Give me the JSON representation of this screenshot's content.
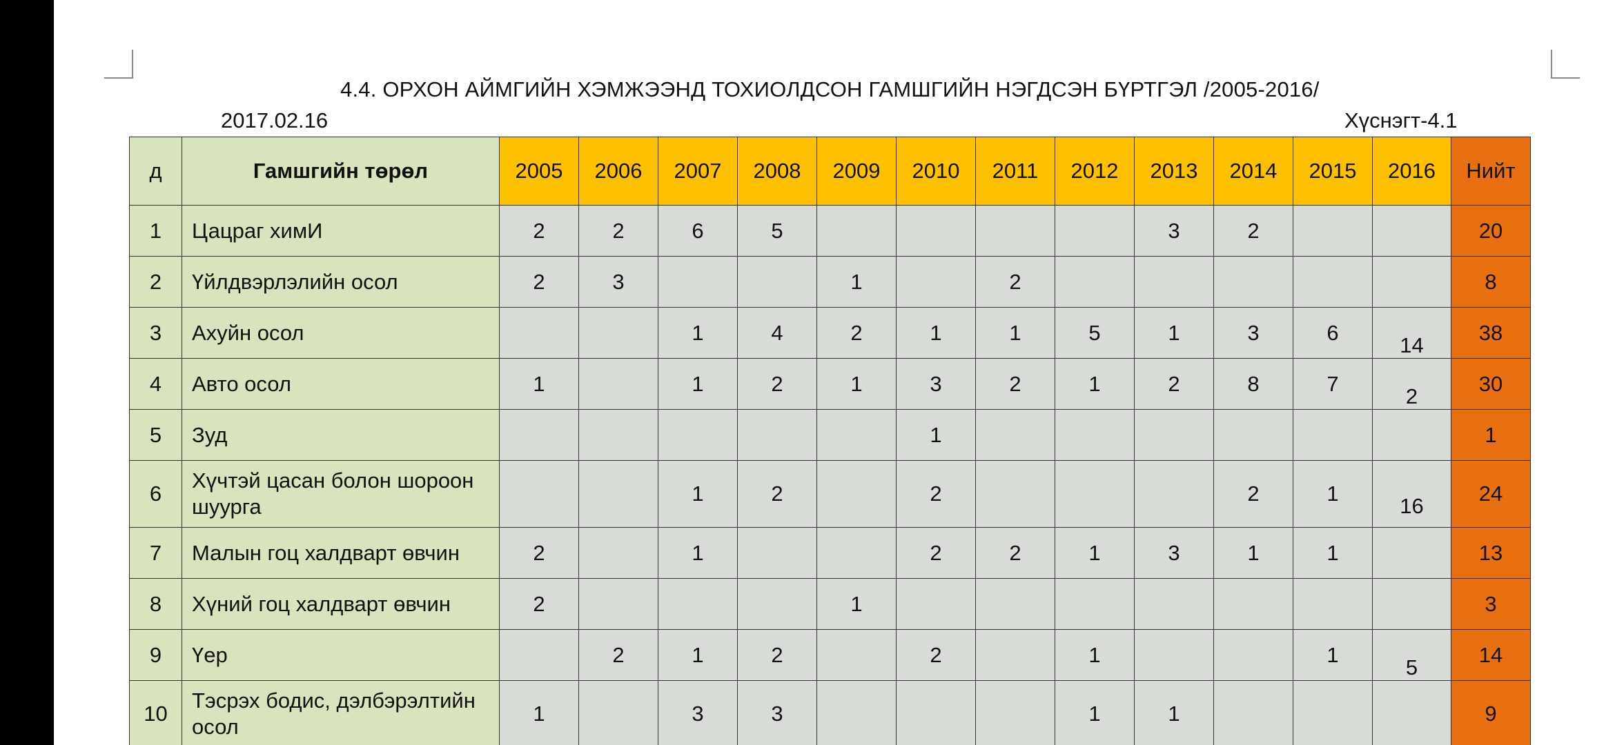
{
  "title": "4.4. ОРХОН АЙМГИЙН ХЭМЖЭЭНД ТОХИОЛДСОН ГАМШГИЙН НЭГДСЭН БҮРТГЭЛ /2005-2016/",
  "date": "2017.02.16",
  "appendix": "Хүснэгт-4.1",
  "header": {
    "num": "д",
    "type": "Гамшгийн төрөл",
    "years": [
      "2005",
      "2006",
      "2007",
      "2008",
      "2009",
      "2010",
      "2011",
      "2012",
      "2013",
      "2014",
      "2015",
      "2016"
    ],
    "total": "Нийт"
  },
  "colors": {
    "name_col": "#d7e4bd",
    "year_header": "#ffc000",
    "total_col": "#e87010",
    "cells": "#d8dcd6"
  },
  "rows": [
    {
      "n": "1",
      "name": "Цацраг химИ",
      "v": [
        "2",
        "2",
        "6",
        "5",
        "",
        "",
        "",
        "",
        "3",
        "2",
        "",
        ""
      ],
      "total": "20"
    },
    {
      "n": "2",
      "name": "Үйлдвэрлэлийн осол",
      "v": [
        "2",
        "3",
        "",
        "",
        "1",
        "",
        "2",
        "",
        "",
        "",
        "",
        ""
      ],
      "total": "8"
    },
    {
      "n": "3",
      "name": "Ахуйн осол",
      "v": [
        "",
        "",
        "1",
        "4",
        "2",
        "1",
        "1",
        "5",
        "1",
        "3",
        "6",
        "14"
      ],
      "total": "38"
    },
    {
      "n": "4",
      "name": "Авто осол",
      "v": [
        "1",
        "",
        "1",
        "2",
        "1",
        "3",
        "2",
        "1",
        "2",
        "8",
        "7",
        "2"
      ],
      "total": "30"
    },
    {
      "n": "5",
      "name": "Зуд",
      "v": [
        "",
        "",
        "",
        "",
        "",
        "1",
        "",
        "",
        "",
        "",
        "",
        ""
      ],
      "total": "1"
    },
    {
      "n": "6",
      "name": "Хүчтэй цасан болон шороон шуурга",
      "v": [
        "",
        "",
        "1",
        "2",
        "",
        "2",
        "",
        "",
        "",
        "2",
        "1",
        "16"
      ],
      "total": "24"
    },
    {
      "n": "7",
      "name": "Малын гоц халдварт өвчин",
      "v": [
        "2",
        "",
        "1",
        "",
        "",
        "2",
        "2",
        "1",
        "3",
        "1",
        "1",
        ""
      ],
      "total": "13"
    },
    {
      "n": "8",
      "name": "Хүний гоц халдварт өвчин",
      "v": [
        "2",
        "",
        "",
        "",
        "1",
        "",
        "",
        "",
        "",
        "",
        "",
        ""
      ],
      "total": "3"
    },
    {
      "n": "9",
      "name": "Үер",
      "v": [
        "",
        "2",
        "1",
        "2",
        "",
        "2",
        "",
        "1",
        "",
        "",
        "1",
        "5"
      ],
      "total": "14"
    },
    {
      "n": "10",
      "name": "Тэсрэх бодис, дэлбэрэлтийн осол",
      "v": [
        "1",
        "",
        "3",
        "3",
        "",
        "",
        "",
        "1",
        "1",
        "",
        "",
        ""
      ],
      "total": "9"
    }
  ]
}
